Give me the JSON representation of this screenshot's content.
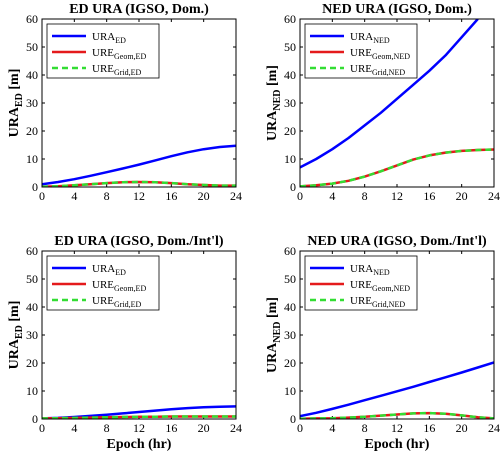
{
  "chart_data": [
    {
      "type": "line",
      "title": "ED URA (IGSO, Dom.)",
      "xlabel": "",
      "ylabel": "URA_ED [m]",
      "ylabel_parts": [
        "URA",
        "ED",
        " [m]"
      ],
      "xlim": [
        0,
        24
      ],
      "ylim": [
        0,
        60
      ],
      "xticks": [
        0,
        4,
        8,
        12,
        16,
        20,
        24
      ],
      "yticks": [
        0,
        10,
        20,
        30,
        40,
        50,
        60
      ],
      "legend": "top-left",
      "series": [
        {
          "name": "URA_ED",
          "label": [
            "URA",
            "ED"
          ],
          "color": "#0000ff",
          "style": "solid",
          "x": [
            0,
            2,
            4,
            6,
            8,
            10,
            12,
            14,
            16,
            18,
            20,
            22,
            24
          ],
          "y": [
            1.0,
            1.8,
            2.8,
            4.0,
            5.3,
            6.6,
            8.0,
            9.5,
            11.0,
            12.4,
            13.5,
            14.3,
            14.7
          ]
        },
        {
          "name": "URE_Geom,ED",
          "label": [
            "URE",
            "Geom,ED"
          ],
          "color": "#e41a1c",
          "style": "solid",
          "x": [
            0,
            2,
            4,
            6,
            8,
            10,
            12,
            14,
            16,
            18,
            20,
            22,
            24
          ],
          "y": [
            0.1,
            0.3,
            0.6,
            1.0,
            1.4,
            1.7,
            1.8,
            1.7,
            1.4,
            1.0,
            0.7,
            0.5,
            0.5
          ]
        },
        {
          "name": "URE_Grid,ED",
          "label": [
            "URE",
            "Grid,ED"
          ],
          "color": "#33dd33",
          "style": "dashed",
          "x": [
            0,
            2,
            4,
            6,
            8,
            10,
            12,
            14,
            16,
            18,
            20,
            22,
            24
          ],
          "y": [
            0.1,
            0.3,
            0.6,
            1.0,
            1.4,
            1.7,
            1.8,
            1.7,
            1.4,
            1.0,
            0.7,
            0.5,
            0.5
          ]
        }
      ]
    },
    {
      "type": "line",
      "title": "NED URA (IGSO, Dom.)",
      "xlabel": "",
      "ylabel": "URA_NED [m]",
      "ylabel_parts": [
        "URA",
        "NED",
        " [m]"
      ],
      "xlim": [
        0,
        24
      ],
      "ylim": [
        0,
        60
      ],
      "xticks": [
        0,
        4,
        8,
        12,
        16,
        20,
        24
      ],
      "yticks": [
        0,
        10,
        20,
        30,
        40,
        50,
        60
      ],
      "legend": "top-left",
      "series": [
        {
          "name": "URA_NED",
          "label": [
            "URA",
            "NED"
          ],
          "color": "#0000ff",
          "style": "solid",
          "x": [
            0,
            2,
            4,
            6,
            8,
            10,
            12,
            14,
            16,
            18,
            20,
            22
          ],
          "y": [
            7.0,
            10.0,
            13.5,
            17.5,
            22.0,
            26.5,
            31.5,
            36.5,
            41.5,
            47.0,
            53.5,
            60.0
          ]
        },
        {
          "name": "URE_Geom,NED",
          "label": [
            "URE",
            "Geom,NED"
          ],
          "color": "#e41a1c",
          "style": "solid",
          "x": [
            0,
            2,
            4,
            6,
            8,
            10,
            12,
            14,
            16,
            18,
            20,
            22,
            24
          ],
          "y": [
            0.2,
            0.6,
            1.2,
            2.2,
            3.7,
            5.6,
            7.7,
            9.8,
            11.3,
            12.3,
            12.9,
            13.2,
            13.4
          ]
        },
        {
          "name": "URE_Grid,NED",
          "label": [
            "URE",
            "Grid,NED"
          ],
          "color": "#33dd33",
          "style": "dashed",
          "x": [
            0,
            2,
            4,
            6,
            8,
            10,
            12,
            14,
            16,
            18,
            20,
            22,
            24
          ],
          "y": [
            0.2,
            0.6,
            1.2,
            2.2,
            3.7,
            5.6,
            7.7,
            9.8,
            11.3,
            12.3,
            12.9,
            13.2,
            13.4
          ]
        }
      ]
    },
    {
      "type": "line",
      "title": "ED URA (IGSO, Dom./Int'l)",
      "xlabel": "Epoch (hr)",
      "ylabel": "URA_ED [m]",
      "ylabel_parts": [
        "URA",
        "ED",
        " [m]"
      ],
      "xlim": [
        0,
        24
      ],
      "ylim": [
        0,
        60
      ],
      "xticks": [
        0,
        4,
        8,
        12,
        16,
        20,
        24
      ],
      "yticks": [
        0,
        10,
        20,
        30,
        40,
        50,
        60
      ],
      "legend": "top-left",
      "series": [
        {
          "name": "URA_ED",
          "label": [
            "URA",
            "ED"
          ],
          "color": "#0000ff",
          "style": "solid",
          "x": [
            0,
            2,
            4,
            6,
            8,
            10,
            12,
            14,
            16,
            18,
            20,
            22,
            24
          ],
          "y": [
            0.2,
            0.4,
            0.7,
            1.1,
            1.5,
            2.0,
            2.5,
            3.0,
            3.5,
            3.9,
            4.2,
            4.4,
            4.5
          ]
        },
        {
          "name": "URE_Geom,ED",
          "label": [
            "URE",
            "Geom,ED"
          ],
          "color": "#e41a1c",
          "style": "solid",
          "x": [
            0,
            2,
            4,
            6,
            8,
            10,
            12,
            14,
            16,
            18,
            20,
            22,
            24
          ],
          "y": [
            0.2,
            0.3,
            0.4,
            0.5,
            0.6,
            0.7,
            0.8,
            0.8,
            0.9,
            0.9,
            0.9,
            0.9,
            0.9
          ]
        },
        {
          "name": "URE_Grid,ED",
          "label": [
            "URE",
            "Grid,ED"
          ],
          "color": "#33dd33",
          "style": "dashed",
          "x": [
            0,
            2,
            4,
            6,
            8,
            10,
            12,
            14,
            16,
            18,
            20,
            22,
            24
          ],
          "y": [
            0.2,
            0.3,
            0.4,
            0.5,
            0.6,
            0.7,
            0.8,
            0.8,
            0.9,
            0.9,
            0.9,
            0.9,
            0.9
          ]
        }
      ]
    },
    {
      "type": "line",
      "title": "NED URA (IGSO, Dom./Int'l)",
      "xlabel": "Epoch (hr)",
      "ylabel": "URA_NED [m]",
      "ylabel_parts": [
        "URA",
        "NED",
        " [m]"
      ],
      "xlim": [
        0,
        24
      ],
      "ylim": [
        0,
        60
      ],
      "xticks": [
        0,
        4,
        8,
        12,
        16,
        20,
        24
      ],
      "yticks": [
        0,
        10,
        20,
        30,
        40,
        50,
        60
      ],
      "legend": "top-left",
      "series": [
        {
          "name": "URA_NED",
          "label": [
            "URA",
            "NED"
          ],
          "color": "#0000ff",
          "style": "solid",
          "x": [
            0,
            2,
            4,
            6,
            8,
            10,
            12,
            14,
            16,
            18,
            20,
            22,
            24
          ],
          "y": [
            1.0,
            2.2,
            3.6,
            5.1,
            6.7,
            8.3,
            9.9,
            11.5,
            13.2,
            14.9,
            16.6,
            18.4,
            20.2
          ]
        },
        {
          "name": "URE_Geom,NED",
          "label": [
            "URE",
            "Geom,NED"
          ],
          "color": "#e41a1c",
          "style": "solid",
          "x": [
            0,
            2,
            4,
            6,
            8,
            10,
            12,
            14,
            16,
            18,
            20,
            22,
            24
          ],
          "y": [
            0.1,
            0.2,
            0.3,
            0.5,
            0.8,
            1.2,
            1.6,
            2.0,
            2.1,
            1.9,
            1.3,
            0.6,
            0.2
          ]
        },
        {
          "name": "URE_Grid,NED",
          "label": [
            "URE",
            "Grid,NED"
          ],
          "color": "#33dd33",
          "style": "dashed",
          "x": [
            0,
            2,
            4,
            6,
            8,
            10,
            12,
            14,
            16,
            18,
            20,
            22,
            24
          ],
          "y": [
            0.1,
            0.2,
            0.3,
            0.5,
            0.8,
            1.2,
            1.6,
            2.0,
            2.1,
            1.9,
            1.3,
            0.6,
            0.2
          ]
        }
      ]
    }
  ]
}
